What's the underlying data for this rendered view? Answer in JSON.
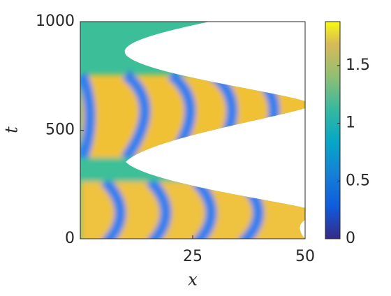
{
  "chart_data": {
    "type": "heatmap",
    "xlabel": "x",
    "ylabel": "t",
    "xlim": [
      0,
      50
    ],
    "xticks": [
      25,
      50
    ],
    "ylim": [
      0,
      1000
    ],
    "yticks": [
      0,
      500,
      1000
    ],
    "colorbar": {
      "lim": [
        0,
        1.88
      ],
      "ticks": [
        0,
        0.5,
        1,
        1.5
      ]
    }
  }
}
